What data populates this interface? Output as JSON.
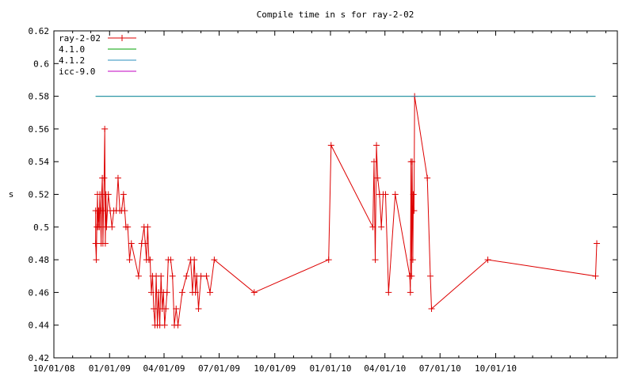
{
  "chart_data": {
    "type": "line",
    "title": "Compile time in s for ray-2-02",
    "xlabel": "",
    "ylabel": "s",
    "x_tick_labels": [
      "10/01/08",
      "01/01/09",
      "04/01/09",
      "07/01/09",
      "10/01/09",
      "01/01/10",
      "04/01/10",
      "07/01/10",
      "10/01/10"
    ],
    "x_tick_dates": [
      "2008-10-01",
      "2009-01-01",
      "2009-04-01",
      "2009-07-01",
      "2009-10-01",
      "2010-01-01",
      "2010-04-01",
      "2010-07-01",
      "2010-10-01"
    ],
    "xlim": [
      "2008-10-01",
      "2011-04-20"
    ],
    "y_ticks": [
      "0.42",
      "0.44",
      "0.46",
      "0.48",
      "0.5",
      "0.52",
      "0.54",
      "0.56",
      "0.58",
      "0.6",
      "0.62"
    ],
    "ylim": [
      0.42,
      0.62
    ],
    "grid": false,
    "legend_position": "top-left",
    "series": [
      {
        "name": "ray-2-02",
        "color": "#dd0000",
        "marker": "plus",
        "points": [
          [
            "2008-12-09",
            0.51
          ],
          [
            "2008-12-09",
            0.49
          ],
          [
            "2008-12-10",
            0.48
          ],
          [
            "2008-12-11",
            0.5
          ],
          [
            "2008-12-12",
            0.52
          ],
          [
            "2008-12-13",
            0.5
          ],
          [
            "2008-12-14",
            0.51
          ],
          [
            "2008-12-15",
            0.5
          ],
          [
            "2008-12-16",
            0.52
          ],
          [
            "2008-12-17",
            0.51
          ],
          [
            "2008-12-18",
            0.49
          ],
          [
            "2008-12-19",
            0.52
          ],
          [
            "2008-12-20",
            0.53
          ],
          [
            "2008-12-21",
            0.49
          ],
          [
            "2008-12-22",
            0.51
          ],
          [
            "2008-12-23",
            0.53
          ],
          [
            "2008-12-24",
            0.56
          ],
          [
            "2008-12-25",
            0.49
          ],
          [
            "2008-12-26",
            0.52
          ],
          [
            "2008-12-27",
            0.5
          ],
          [
            "2008-12-30",
            0.52
          ],
          [
            "2009-01-02",
            0.51
          ],
          [
            "2009-01-05",
            0.5
          ],
          [
            "2009-01-08",
            0.51
          ],
          [
            "2009-01-12",
            0.51
          ],
          [
            "2009-01-15",
            0.53
          ],
          [
            "2009-01-18",
            0.51
          ],
          [
            "2009-01-21",
            0.51
          ],
          [
            "2009-01-24",
            0.52
          ],
          [
            "2009-01-26",
            0.51
          ],
          [
            "2009-01-28",
            0.5
          ],
          [
            "2009-01-31",
            0.5
          ],
          [
            "2009-02-03",
            0.48
          ],
          [
            "2009-02-06",
            0.49
          ],
          [
            "2009-02-18",
            0.47
          ],
          [
            "2009-02-23",
            0.49
          ],
          [
            "2009-02-27",
            0.5
          ],
          [
            "2009-03-01",
            0.49
          ],
          [
            "2009-03-03",
            0.48
          ],
          [
            "2009-03-05",
            0.5
          ],
          [
            "2009-03-07",
            0.48
          ],
          [
            "2009-03-09",
            0.48
          ],
          [
            "2009-03-11",
            0.46
          ],
          [
            "2009-03-13",
            0.47
          ],
          [
            "2009-03-15",
            0.45
          ],
          [
            "2009-03-17",
            0.44
          ],
          [
            "2009-03-19",
            0.47
          ],
          [
            "2009-03-21",
            0.44
          ],
          [
            "2009-03-23",
            0.46
          ],
          [
            "2009-03-25",
            0.44
          ],
          [
            "2009-03-27",
            0.47
          ],
          [
            "2009-03-29",
            0.45
          ],
          [
            "2009-03-31",
            0.46
          ],
          [
            "2009-04-02",
            0.44
          ],
          [
            "2009-04-04",
            0.45
          ],
          [
            "2009-04-06",
            0.46
          ],
          [
            "2009-04-08",
            0.48
          ],
          [
            "2009-04-12",
            0.48
          ],
          [
            "2009-04-15",
            0.47
          ],
          [
            "2009-04-18",
            0.44
          ],
          [
            "2009-04-21",
            0.45
          ],
          [
            "2009-04-24",
            0.44
          ],
          [
            "2009-05-01",
            0.46
          ],
          [
            "2009-05-08",
            0.47
          ],
          [
            "2009-05-15",
            0.48
          ],
          [
            "2009-05-18",
            0.46
          ],
          [
            "2009-05-21",
            0.48
          ],
          [
            "2009-05-23",
            0.46
          ],
          [
            "2009-05-25",
            0.47
          ],
          [
            "2009-05-28",
            0.45
          ],
          [
            "2009-06-01",
            0.47
          ],
          [
            "2009-06-10",
            0.47
          ],
          [
            "2009-06-16",
            0.46
          ],
          [
            "2009-06-23",
            0.48
          ],
          [
            "2009-08-28",
            0.46
          ],
          [
            "2009-12-29",
            0.48
          ],
          [
            "2010-01-02",
            0.55
          ],
          [
            "2010-03-12",
            0.5
          ],
          [
            "2010-03-14",
            0.54
          ],
          [
            "2010-03-16",
            0.48
          ],
          [
            "2010-03-18",
            0.55
          ],
          [
            "2010-03-20",
            0.53
          ],
          [
            "2010-03-23",
            0.52
          ],
          [
            "2010-03-26",
            0.5
          ],
          [
            "2010-03-29",
            0.52
          ],
          [
            "2010-04-02",
            0.52
          ],
          [
            "2010-04-07",
            0.46
          ],
          [
            "2010-04-18",
            0.52
          ],
          [
            "2010-05-12",
            0.47
          ],
          [
            "2010-05-13",
            0.46
          ],
          [
            "2010-05-14",
            0.54
          ],
          [
            "2010-05-15",
            0.47
          ],
          [
            "2010-05-16",
            0.54
          ],
          [
            "2010-05-17",
            0.48
          ],
          [
            "2010-05-18",
            0.52
          ],
          [
            "2010-05-19",
            0.51
          ],
          [
            "2010-05-20",
            0.58
          ],
          [
            "2010-06-10",
            0.53
          ],
          [
            "2010-06-15",
            0.47
          ],
          [
            "2010-06-17",
            0.45
          ],
          [
            "2010-09-18",
            0.48
          ],
          [
            "2011-03-15",
            0.47
          ],
          [
            "2011-03-17",
            0.49
          ]
        ]
      },
      {
        "name": "4.1.0",
        "color": "#00a000",
        "points": [
          [
            "2008-12-09",
            0.58
          ],
          [
            "2011-03-15",
            0.58
          ]
        ]
      },
      {
        "name": "4.1.2",
        "color": "#2a8fbd",
        "points": [
          [
            "2008-12-09",
            0.58
          ],
          [
            "2011-03-15",
            0.58
          ]
        ]
      },
      {
        "name": "icc-9.0",
        "color": "#c000c0",
        "points": []
      }
    ]
  }
}
